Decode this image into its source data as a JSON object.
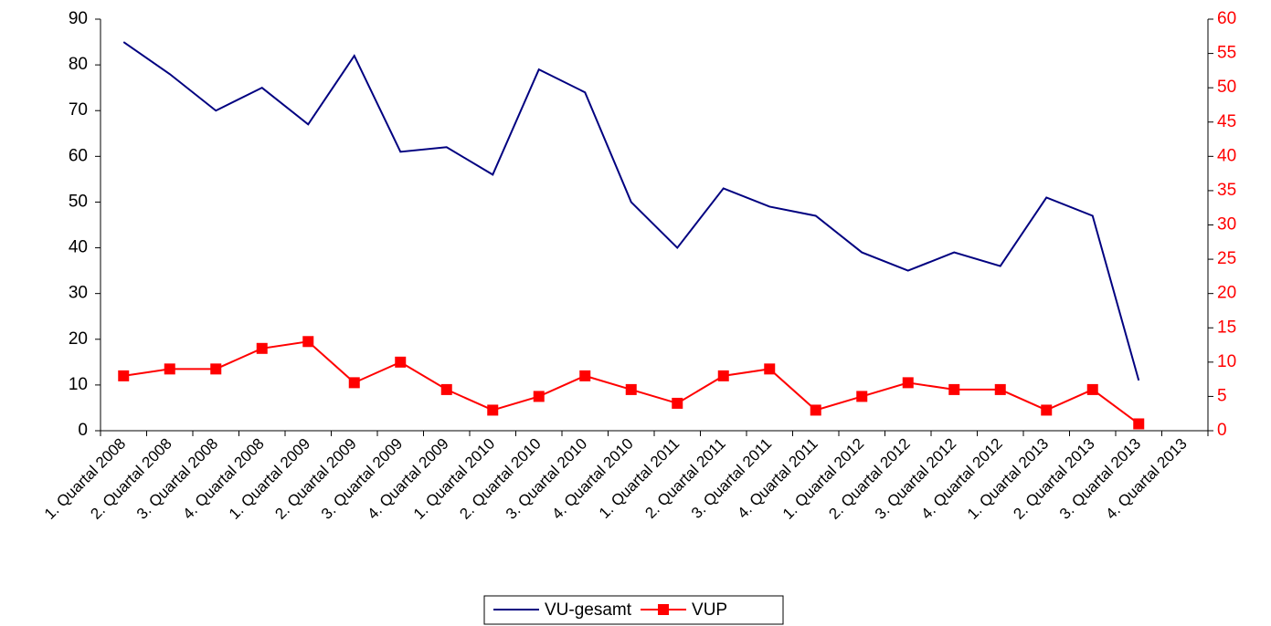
{
  "chart_data": {
    "type": "line",
    "categories": [
      "1. Quartal 2008",
      "2. Quartal 2008",
      "3. Quartal 2008",
      "4. Quartal 2008",
      "1. Quartal 2009",
      "2. Quartal 2009",
      "3. Quartal 2009",
      "4. Quartal 2009",
      "1. Quartal 2010",
      "2. Quartal 2010",
      "3. Quartal 2010",
      "4. Quartal 2010",
      "1. Quartal 2011",
      "2. Quartal 2011",
      "3. Quartal 2011",
      "4. Quartal 2011",
      "1. Quartal 2012",
      "2. Quartal 2012",
      "3. Quartal 2012",
      "4. Quartal 2012",
      "1. Quartal 2013",
      "2. Quartal 2013",
      "3. Quartal 2013",
      "4. Quartal 2013"
    ],
    "series": [
      {
        "name": "VU-gesamt",
        "color": "#000080",
        "values": [
          85,
          78,
          70,
          75,
          67,
          82,
          61,
          62,
          56,
          79,
          74,
          50,
          40,
          53,
          49,
          47,
          39,
          35,
          39,
          36,
          51,
          47,
          11,
          null
        ]
      },
      {
        "name": "VUP",
        "color": "#ff0000",
        "axis": "y2",
        "marker": "square",
        "values": [
          8,
          9,
          9,
          12,
          13,
          7,
          10,
          6,
          3,
          5,
          8,
          6,
          4,
          8,
          9,
          3,
          5,
          7,
          6,
          6,
          3,
          6,
          1,
          null
        ]
      }
    ],
    "ylim": [
      0,
      90
    ],
    "yticks": [
      0,
      10,
      20,
      30,
      40,
      50,
      60,
      70,
      80,
      90
    ],
    "y2lim": [
      0,
      60
    ],
    "y2ticks": [
      0,
      5,
      10,
      15,
      20,
      25,
      30,
      35,
      40,
      45,
      50,
      55,
      60
    ],
    "y2color": "#ff0000",
    "legend": "bottom"
  }
}
